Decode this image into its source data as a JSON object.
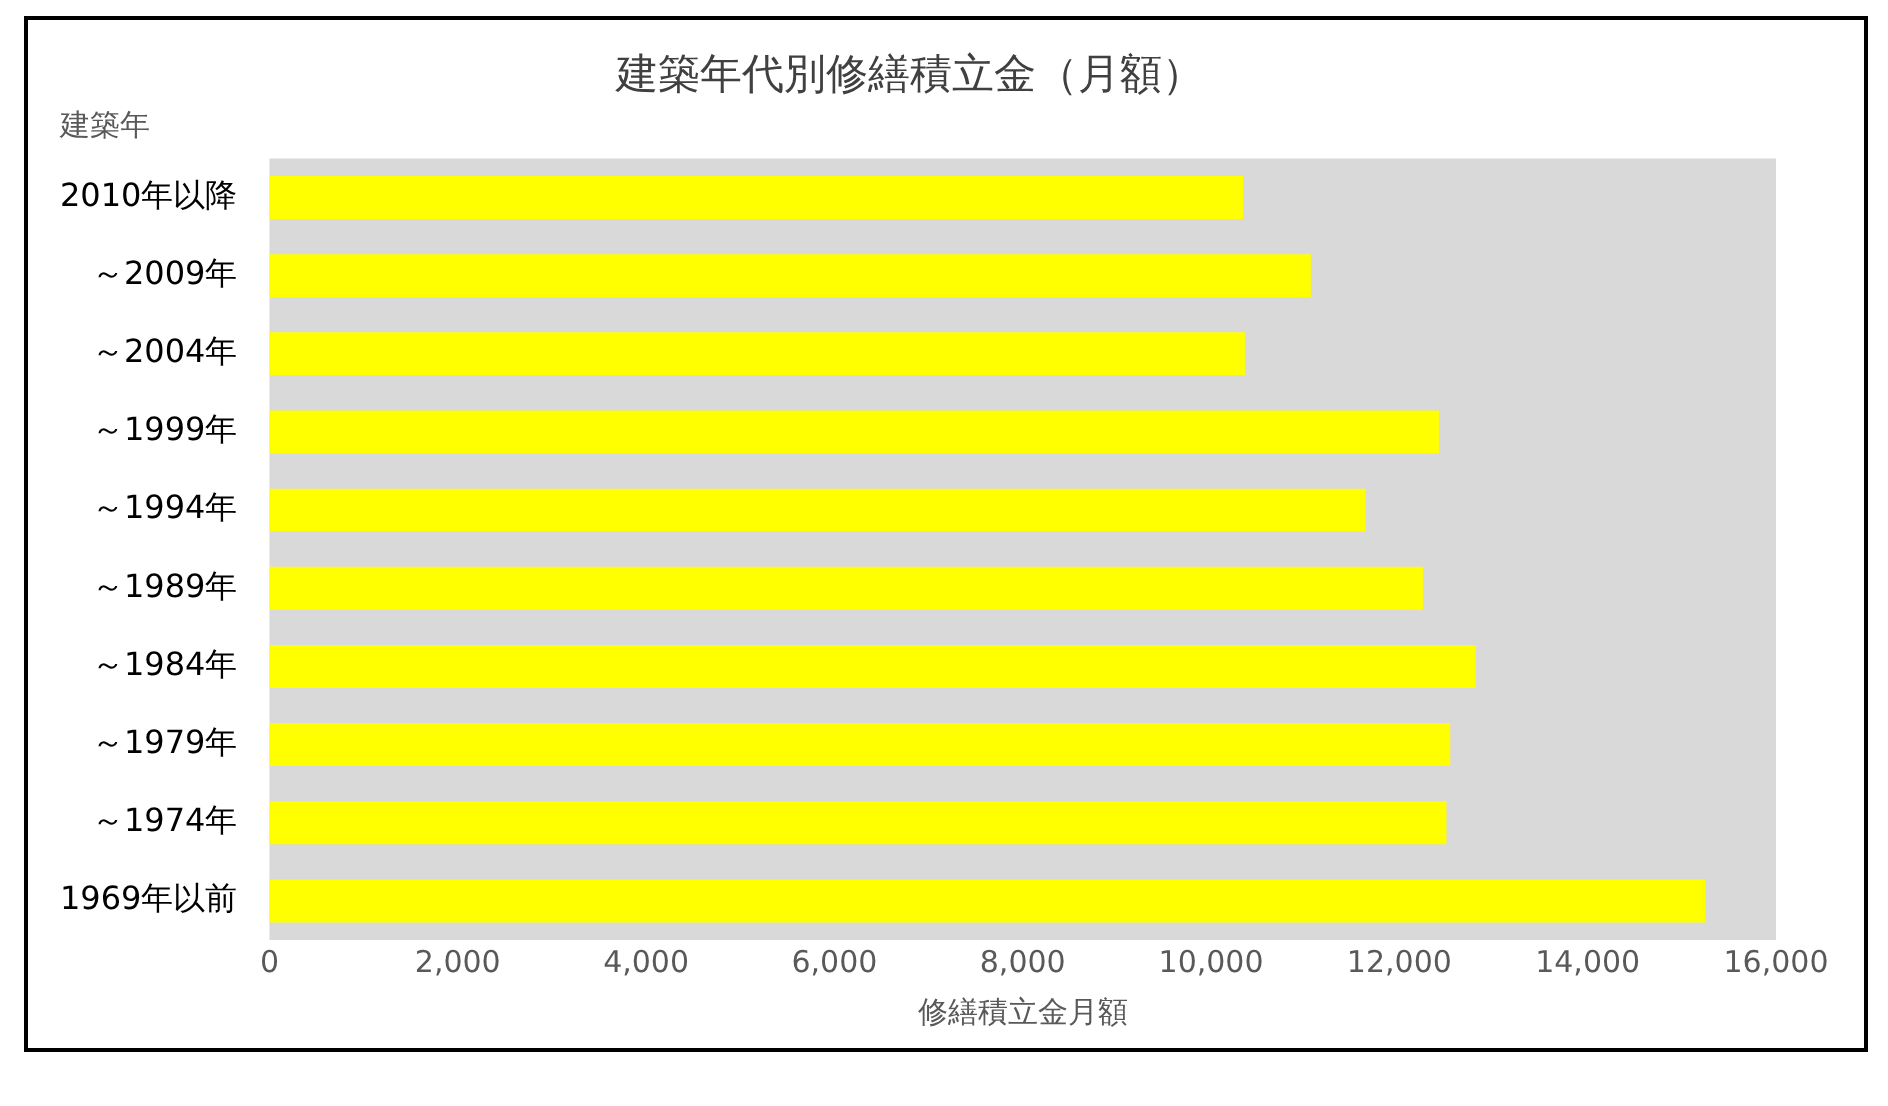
{
  "chart_data": {
    "type": "bar",
    "orientation": "horizontal",
    "title": "建築年代別修繕積立金（月額）",
    "xlabel": "修繕積立金月額",
    "ylabel": "建築年",
    "categories": [
      "2010年以降",
      "～2009年",
      "～2004年",
      "～1999年",
      "～1994年",
      "～1989年",
      "～1984年",
      "～1979年",
      "～1974年",
      "1969年以前"
    ],
    "values": [
      10340,
      11060,
      10360,
      12420,
      11640,
      12250,
      12810,
      12540,
      12500,
      15250
    ],
    "color": "#ffff00",
    "xlim": [
      0,
      16000
    ],
    "xticks": [
      {
        "value": 0,
        "label": "0"
      },
      {
        "value": 2000,
        "label": "2,000"
      },
      {
        "value": 4000,
        "label": "4,000"
      },
      {
        "value": 6000,
        "label": "6,000"
      },
      {
        "value": 8000,
        "label": "8,000"
      },
      {
        "value": 10000,
        "label": "10,000"
      },
      {
        "value": 12000,
        "label": "12,000"
      },
      {
        "value": 14000,
        "label": "14,000"
      },
      {
        "value": 16000,
        "label": "16,000"
      }
    ],
    "grid": false,
    "legend": false
  }
}
